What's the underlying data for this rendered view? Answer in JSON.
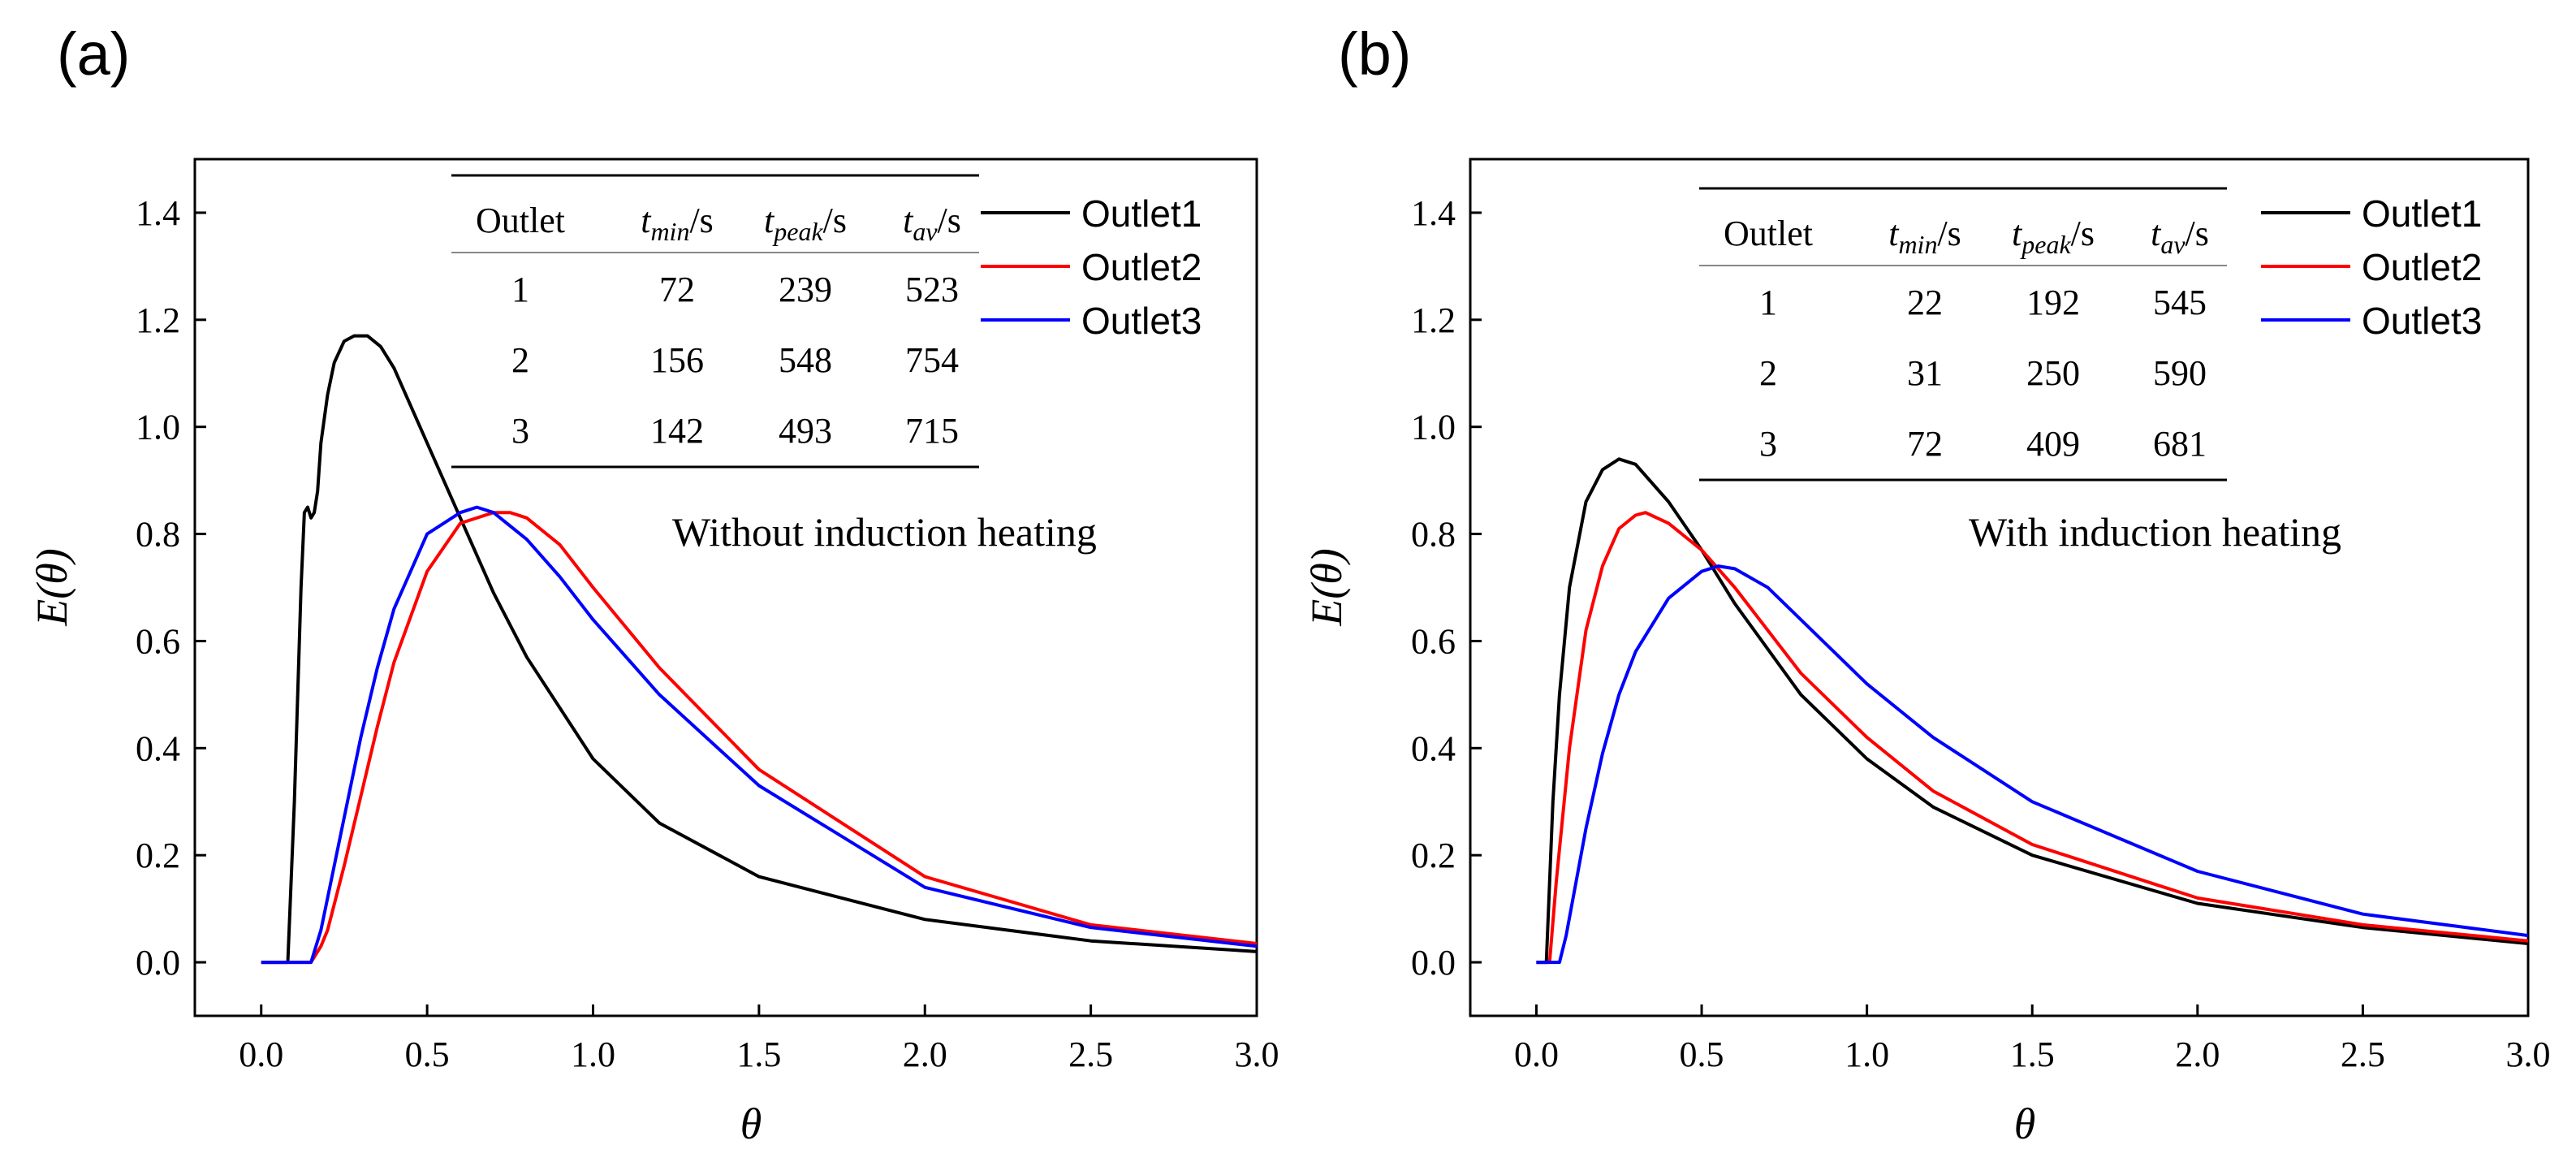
{
  "figure": {
    "panels": [
      {
        "panel_label": "(a)",
        "annotation": "Without induction heating",
        "xlabel": "θ",
        "ylabel": "E(θ)",
        "xticks": [
          "0.0",
          "0.5",
          "1.0",
          "1.5",
          "2.0",
          "2.5",
          "3.0"
        ],
        "yticks": [
          "0.0",
          "0.2",
          "0.4",
          "0.6",
          "0.8",
          "1.0",
          "1.2",
          "1.4"
        ],
        "legend": [
          "Outlet1",
          "Outlet2",
          "Outlet3"
        ],
        "table": {
          "headers": [
            "Outlet",
            "t_min/s",
            "t_peak/s",
            "t_av/s"
          ],
          "header_base": [
            "Outlet",
            "t",
            "t",
            "t"
          ],
          "header_sub": [
            "",
            "min",
            "peak",
            "av"
          ],
          "header_unit": [
            "",
            "/s",
            "/s",
            "/s"
          ],
          "rows": [
            [
              "1",
              "72",
              "239",
              "523"
            ],
            [
              "2",
              "156",
              "548",
              "754"
            ],
            [
              "3",
              "142",
              "493",
              "715"
            ]
          ]
        }
      },
      {
        "panel_label": "(b)",
        "annotation": "With induction heating",
        "xlabel": "θ",
        "ylabel": "E(θ)",
        "xticks": [
          "0.0",
          "0.5",
          "1.0",
          "1.5",
          "2.0",
          "2.5",
          "3.0"
        ],
        "yticks": [
          "0.0",
          "0.2",
          "0.4",
          "0.6",
          "0.8",
          "1.0",
          "1.2",
          "1.4"
        ],
        "legend": [
          "Outlet1",
          "Outlet2",
          "Outlet3"
        ],
        "table": {
          "headers": [
            "Outlet",
            "t_min/s",
            "t_peak/s",
            "t_av/s"
          ],
          "header_base": [
            "Outlet",
            "t",
            "t",
            "t"
          ],
          "header_sub": [
            "",
            "min",
            "peak",
            "av"
          ],
          "header_unit": [
            "",
            "/s",
            "/s",
            "/s"
          ],
          "rows": [
            [
              "1",
              "22",
              "192",
              "545"
            ],
            [
              "2",
              "31",
              "250",
              "590"
            ],
            [
              "3",
              "72",
              "409",
              "681"
            ]
          ]
        }
      }
    ]
  },
  "colors": {
    "outlet1": "#000000",
    "outlet2": "#ff0000",
    "outlet3": "#0000ff",
    "axis": "#000000"
  },
  "chart_data": [
    {
      "type": "line",
      "title": "",
      "xlabel": "θ",
      "ylabel": "E(θ)",
      "xlim": [
        -0.2,
        3.0
      ],
      "ylim": [
        -0.1,
        1.5
      ],
      "grid": false,
      "legend_position": "top-right",
      "series": [
        {
          "name": "Outlet1",
          "color": "#000000",
          "x": [
            0.0,
            0.08,
            0.1,
            0.12,
            0.13,
            0.14,
            0.15,
            0.16,
            0.17,
            0.18,
            0.2,
            0.22,
            0.25,
            0.28,
            0.32,
            0.36,
            0.4,
            0.5,
            0.6,
            0.7,
            0.8,
            1.0,
            1.2,
            1.5,
            2.0,
            2.5,
            3.0
          ],
          "y": [
            0.0,
            0.0,
            0.3,
            0.7,
            0.84,
            0.85,
            0.83,
            0.84,
            0.88,
            0.97,
            1.06,
            1.12,
            1.16,
            1.17,
            1.17,
            1.15,
            1.11,
            0.97,
            0.83,
            0.69,
            0.57,
            0.38,
            0.26,
            0.16,
            0.08,
            0.04,
            0.02
          ]
        },
        {
          "name": "Outlet2",
          "color": "#ff0000",
          "x": [
            0.0,
            0.15,
            0.18,
            0.2,
            0.25,
            0.3,
            0.35,
            0.4,
            0.5,
            0.6,
            0.7,
            0.75,
            0.8,
            0.9,
            1.0,
            1.2,
            1.5,
            2.0,
            2.5,
            3.0
          ],
          "y": [
            0.0,
            0.0,
            0.03,
            0.06,
            0.18,
            0.31,
            0.44,
            0.56,
            0.73,
            0.82,
            0.84,
            0.84,
            0.83,
            0.78,
            0.7,
            0.55,
            0.36,
            0.16,
            0.07,
            0.035
          ]
        },
        {
          "name": "Outlet3",
          "color": "#0000ff",
          "x": [
            0.0,
            0.15,
            0.18,
            0.2,
            0.25,
            0.3,
            0.35,
            0.4,
            0.5,
            0.6,
            0.65,
            0.7,
            0.8,
            0.9,
            1.0,
            1.2,
            1.5,
            2.0,
            2.5,
            3.0
          ],
          "y": [
            0.0,
            0.0,
            0.06,
            0.12,
            0.27,
            0.42,
            0.55,
            0.66,
            0.8,
            0.84,
            0.85,
            0.84,
            0.79,
            0.72,
            0.64,
            0.5,
            0.33,
            0.14,
            0.065,
            0.03
          ]
        }
      ]
    },
    {
      "type": "line",
      "title": "",
      "xlabel": "θ",
      "ylabel": "E(θ)",
      "xlim": [
        -0.2,
        3.0
      ],
      "ylim": [
        -0.1,
        1.5
      ],
      "grid": false,
      "legend_position": "top-right",
      "series": [
        {
          "name": "Outlet1",
          "color": "#000000",
          "x": [
            0.0,
            0.03,
            0.05,
            0.07,
            0.1,
            0.15,
            0.2,
            0.25,
            0.3,
            0.4,
            0.5,
            0.6,
            0.8,
            1.0,
            1.2,
            1.5,
            2.0,
            2.5,
            3.0
          ],
          "y": [
            0.0,
            0.0,
            0.3,
            0.5,
            0.7,
            0.86,
            0.92,
            0.94,
            0.93,
            0.86,
            0.77,
            0.67,
            0.5,
            0.38,
            0.29,
            0.2,
            0.11,
            0.065,
            0.035
          ]
        },
        {
          "name": "Outlet2",
          "color": "#ff0000",
          "x": [
            0.0,
            0.04,
            0.06,
            0.1,
            0.15,
            0.2,
            0.25,
            0.3,
            0.33,
            0.4,
            0.5,
            0.6,
            0.8,
            1.0,
            1.2,
            1.5,
            2.0,
            2.5,
            3.0
          ],
          "y": [
            0.0,
            0.0,
            0.15,
            0.4,
            0.62,
            0.74,
            0.81,
            0.835,
            0.84,
            0.82,
            0.77,
            0.7,
            0.54,
            0.42,
            0.32,
            0.22,
            0.12,
            0.07,
            0.04
          ]
        },
        {
          "name": "Outlet3",
          "color": "#0000ff",
          "x": [
            0.0,
            0.07,
            0.09,
            0.12,
            0.15,
            0.2,
            0.25,
            0.3,
            0.4,
            0.5,
            0.55,
            0.6,
            0.7,
            0.8,
            1.0,
            1.2,
            1.5,
            2.0,
            2.5,
            3.0
          ],
          "y": [
            0.0,
            0.0,
            0.05,
            0.15,
            0.25,
            0.39,
            0.5,
            0.58,
            0.68,
            0.73,
            0.74,
            0.735,
            0.7,
            0.64,
            0.52,
            0.42,
            0.3,
            0.17,
            0.09,
            0.05
          ]
        }
      ]
    }
  ]
}
